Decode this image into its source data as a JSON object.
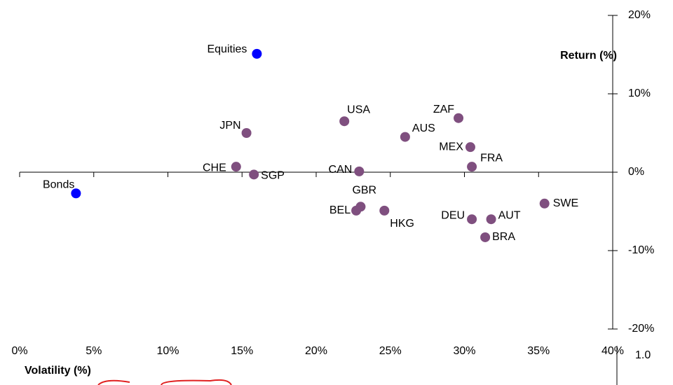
{
  "chart_data": {
    "type": "scatter",
    "x_label": "Volatility (%)",
    "y_label": "Return (%)",
    "annotations": [
      "1.0"
    ],
    "xlim": [
      0,
      40
    ],
    "xticks": [
      {
        "value": 0,
        "label": "0%"
      },
      {
        "value": 5,
        "label": "5%"
      },
      {
        "value": 10,
        "label": "10%"
      },
      {
        "value": 15,
        "label": "15%"
      },
      {
        "value": 20,
        "label": "20%"
      },
      {
        "value": 25,
        "label": "25%"
      },
      {
        "value": 30,
        "label": "30%"
      },
      {
        "value": 35,
        "label": "35%"
      },
      {
        "value": 40,
        "label": "40%"
      }
    ],
    "ylim": [
      -20,
      20
    ],
    "yticks": [
      {
        "value": -20,
        "label": "-20%"
      },
      {
        "value": -10,
        "label": "-10%"
      },
      {
        "value": 0,
        "label": "0%"
      },
      {
        "value": 10,
        "label": "10%"
      },
      {
        "value": 20,
        "label": "20%"
      }
    ],
    "series": [
      {
        "color": "#0000ff",
        "labels": [
          "Equities",
          "Bonds"
        ],
        "x": [
          16.0,
          3.8
        ],
        "values": [
          15.1,
          -2.7
        ]
      },
      {
        "color": "#7f4f7f",
        "labels": [
          "USA",
          "JPN",
          "ZAF",
          "AUS",
          "MEX",
          "FRA",
          "CHE",
          "SGP",
          "CAN",
          "GBR",
          "BEL",
          "HKG",
          "DEU",
          "AUT",
          "SWE",
          "BRA"
        ],
        "x": [
          21.9,
          15.3,
          29.6,
          26.0,
          30.4,
          30.5,
          14.6,
          15.8,
          22.9,
          23.0,
          22.7,
          24.6,
          30.5,
          31.8,
          35.4,
          31.4
        ],
        "values": [
          6.5,
          5.0,
          6.9,
          4.5,
          3.2,
          0.7,
          0.7,
          -0.3,
          0.1,
          -4.4,
          -4.9,
          -4.9,
          -6.0,
          -6.0,
          -4.0,
          -8.3
        ]
      }
    ]
  }
}
